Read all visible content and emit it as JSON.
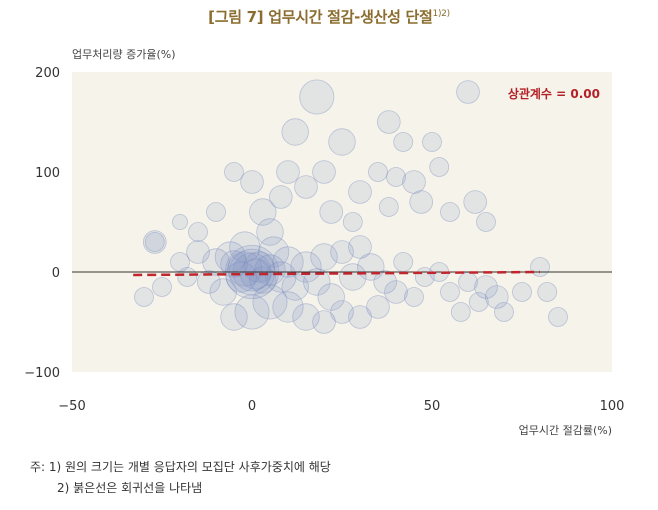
{
  "title": "[그림 7] 업무시간 절감-생산성 단절",
  "title_sup": "1)2)",
  "notes": {
    "line1": "주: 1) 원의 크기는 개별 응답자의 모집단 사후가중치에 해당",
    "line2": "2) 붉은선은 회귀선을 나타냄"
  },
  "chart_data": {
    "type": "scatter",
    "xlabel": "업무시간 절감률(%)",
    "ylabel": "업무처리량 증가율(%)",
    "xlim": [
      -50,
      100
    ],
    "ylim": [
      -100,
      200
    ],
    "xticks": [
      "−50",
      "0",
      "50",
      "100"
    ],
    "yticks": [
      "−100",
      "0",
      "100",
      "200"
    ],
    "annotation": "상관계수 = 0.00",
    "regression_line": {
      "x": [
        -33,
        80
      ],
      "y": [
        -3,
        0
      ]
    },
    "colors": {
      "background": "#f6f3ea",
      "bubble": "#7a8fc0",
      "regression": "#c0262d",
      "annotation": "#b32026"
    },
    "points": [
      {
        "x": 0,
        "y": 0,
        "w": 14
      },
      {
        "x": 0,
        "y": 0,
        "w": 12
      },
      {
        "x": 0,
        "y": 0,
        "w": 10
      },
      {
        "x": 1,
        "y": -2,
        "w": 8
      },
      {
        "x": -2,
        "y": 3,
        "w": 9
      },
      {
        "x": 2,
        "y": 5,
        "w": 8
      },
      {
        "x": -3,
        "y": -5,
        "w": 8
      },
      {
        "x": 3,
        "y": -8,
        "w": 7
      },
      {
        "x": -5,
        "y": 8,
        "w": 7
      },
      {
        "x": 5,
        "y": 2,
        "w": 8
      },
      {
        "x": 8,
        "y": -5,
        "w": 8
      },
      {
        "x": 10,
        "y": 10,
        "w": 8
      },
      {
        "x": 12,
        "y": -15,
        "w": 7
      },
      {
        "x": 15,
        "y": 5,
        "w": 8
      },
      {
        "x": 18,
        "y": -10,
        "w": 7
      },
      {
        "x": 20,
        "y": 15,
        "w": 7
      },
      {
        "x": 22,
        "y": -25,
        "w": 7
      },
      {
        "x": 25,
        "y": 20,
        "w": 6
      },
      {
        "x": 28,
        "y": -5,
        "w": 7
      },
      {
        "x": 30,
        "y": 25,
        "w": 6
      },
      {
        "x": -8,
        "y": -20,
        "w": 7
      },
      {
        "x": -10,
        "y": 10,
        "w": 7
      },
      {
        "x": -12,
        "y": -10,
        "w": 6
      },
      {
        "x": -15,
        "y": 20,
        "w": 6
      },
      {
        "x": -18,
        "y": -5,
        "w": 5
      },
      {
        "x": -20,
        "y": 10,
        "w": 5
      },
      {
        "x": -25,
        "y": -15,
        "w": 5
      },
      {
        "x": -27,
        "y": 30,
        "w": 5
      },
      {
        "x": -30,
        "y": -25,
        "w": 5
      },
      {
        "x": 5,
        "y": -30,
        "w": 9
      },
      {
        "x": 0,
        "y": -40,
        "w": 9
      },
      {
        "x": 10,
        "y": -35,
        "w": 8
      },
      {
        "x": -5,
        "y": -45,
        "w": 7
      },
      {
        "x": 15,
        "y": -45,
        "w": 7
      },
      {
        "x": 20,
        "y": -50,
        "w": 6
      },
      {
        "x": 25,
        "y": -40,
        "w": 6
      },
      {
        "x": 30,
        "y": -45,
        "w": 6
      },
      {
        "x": 35,
        "y": -35,
        "w": 6
      },
      {
        "x": 40,
        "y": -20,
        "w": 6
      },
      {
        "x": 33,
        "y": 5,
        "w": 7
      },
      {
        "x": 37,
        "y": -10,
        "w": 6
      },
      {
        "x": 42,
        "y": 10,
        "w": 5
      },
      {
        "x": 45,
        "y": -25,
        "w": 5
      },
      {
        "x": 48,
        "y": -5,
        "w": 5
      },
      {
        "x": 52,
        "y": 0,
        "w": 5
      },
      {
        "x": 55,
        "y": -20,
        "w": 5
      },
      {
        "x": 58,
        "y": -40,
        "w": 5
      },
      {
        "x": 60,
        "y": -10,
        "w": 5
      },
      {
        "x": 63,
        "y": -30,
        "w": 5
      },
      {
        "x": 65,
        "y": -15,
        "w": 6
      },
      {
        "x": 68,
        "y": -25,
        "w": 6
      },
      {
        "x": 70,
        "y": -40,
        "w": 5
      },
      {
        "x": 75,
        "y": -20,
        "w": 5
      },
      {
        "x": 80,
        "y": 5,
        "w": 5
      },
      {
        "x": 82,
        "y": -20,
        "w": 5
      },
      {
        "x": 85,
        "y": -45,
        "w": 5
      },
      {
        "x": 5,
        "y": 40,
        "w": 7
      },
      {
        "x": 3,
        "y": 60,
        "w": 7
      },
      {
        "x": 8,
        "y": 75,
        "w": 6
      },
      {
        "x": 0,
        "y": 90,
        "w": 6
      },
      {
        "x": 10,
        "y": 100,
        "w": 6
      },
      {
        "x": 15,
        "y": 85,
        "w": 6
      },
      {
        "x": 20,
        "y": 100,
        "w": 6
      },
      {
        "x": 12,
        "y": 140,
        "w": 7
      },
      {
        "x": 18,
        "y": 175,
        "w": 9
      },
      {
        "x": 25,
        "y": 130,
        "w": 7
      },
      {
        "x": 22,
        "y": 60,
        "w": 6
      },
      {
        "x": 28,
        "y": 50,
        "w": 5
      },
      {
        "x": 30,
        "y": 80,
        "w": 6
      },
      {
        "x": 35,
        "y": 100,
        "w": 5
      },
      {
        "x": 38,
        "y": 65,
        "w": 5
      },
      {
        "x": 40,
        "y": 95,
        "w": 5
      },
      {
        "x": 45,
        "y": 90,
        "w": 6
      },
      {
        "x": 47,
        "y": 70,
        "w": 6
      },
      {
        "x": 50,
        "y": 130,
        "w": 5
      },
      {
        "x": 42,
        "y": 130,
        "w": 5
      },
      {
        "x": 38,
        "y": 150,
        "w": 6
      },
      {
        "x": 52,
        "y": 105,
        "w": 5
      },
      {
        "x": 55,
        "y": 60,
        "w": 5
      },
      {
        "x": 60,
        "y": 180,
        "w": 6
      },
      {
        "x": 62,
        "y": 70,
        "w": 6
      },
      {
        "x": 65,
        "y": 50,
        "w": 5
      },
      {
        "x": -5,
        "y": 100,
        "w": 5
      },
      {
        "x": -10,
        "y": 60,
        "w": 5
      },
      {
        "x": -15,
        "y": 40,
        "w": 5
      },
      {
        "x": -20,
        "y": 50,
        "w": 4
      },
      {
        "x": -27,
        "y": 30,
        "w": 6
      },
      {
        "x": -2,
        "y": 25,
        "w": 8
      },
      {
        "x": 6,
        "y": 20,
        "w": 8
      },
      {
        "x": -6,
        "y": 15,
        "w": 8
      }
    ]
  }
}
